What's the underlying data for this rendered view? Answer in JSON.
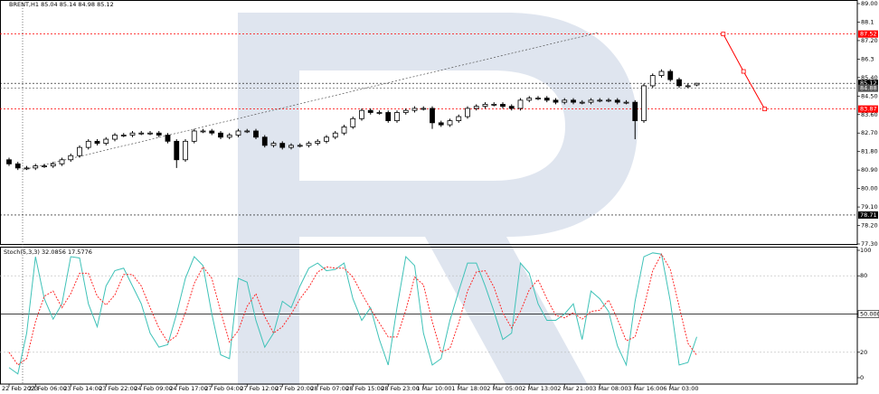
{
  "chart_data": [
    {
      "type": "candlestick",
      "title": "BRENT,H1 85.04 85.14 84.98 85.12",
      "categories": [
        "22 Feb 2023",
        null,
        null,
        "23 Feb 06:00",
        null,
        null,
        null,
        "23 Feb 14:00",
        null,
        null,
        null,
        "23 Feb 22:00",
        null,
        null,
        null,
        "24 Feb 09:00",
        null,
        null,
        null,
        "24 Feb 17:00",
        null,
        null,
        null,
        "27 Feb 04:00",
        null,
        null,
        null,
        "27 Feb 12:00",
        null,
        null,
        null,
        "27 Feb 20:00",
        null,
        null,
        null,
        "28 Feb 07:00",
        null,
        null,
        null,
        "28 Feb 15:00",
        null,
        null,
        null,
        "28 Feb 23:00",
        null,
        null,
        null,
        "1 Mar 10:00",
        null,
        null,
        null,
        "1 Mar 18:00",
        null,
        null,
        null,
        "2 Mar 05:00",
        null,
        null,
        null,
        "2 Mar 13:00",
        null,
        null,
        null,
        "2 Mar 21:00",
        null,
        null,
        null,
        "3 Mar 08:00",
        null,
        null,
        null,
        "3 Mar 16:00",
        null,
        null,
        null,
        "6 Mar 03:00",
        null,
        null,
        null
      ],
      "open": [
        81.4,
        81.2,
        81.0,
        81.0,
        81.1,
        81.1,
        81.2,
        81.4,
        81.6,
        82.0,
        82.3,
        82.2,
        82.4,
        82.6,
        82.6,
        82.7,
        82.7,
        82.7,
        82.6,
        82.3,
        81.4,
        82.3,
        82.8,
        82.8,
        82.7,
        82.5,
        82.6,
        82.8,
        82.8,
        82.5,
        82.1,
        82.2,
        82.0,
        82.1,
        82.1,
        82.2,
        82.3,
        82.5,
        82.7,
        83.0,
        83.4,
        83.8,
        83.7,
        83.7,
        83.3,
        83.7,
        83.8,
        83.9,
        83.9,
        83.2,
        83.1,
        83.3,
        83.5,
        83.9,
        84.0,
        84.1,
        84.1,
        84.0,
        83.9,
        84.3,
        84.4,
        84.4,
        84.3,
        84.2,
        84.3,
        84.2,
        84.2,
        84.3,
        84.3,
        84.3,
        84.2,
        84.2,
        83.3,
        85.0,
        85.5,
        85.7,
        85.3,
        85.0,
        85.04
      ],
      "high": [
        81.5,
        81.3,
        81.1,
        81.2,
        81.2,
        81.3,
        81.5,
        81.7,
        82.1,
        82.4,
        82.4,
        82.5,
        82.7,
        82.7,
        82.8,
        82.8,
        82.8,
        82.8,
        82.7,
        82.4,
        82.4,
        82.9,
        82.9,
        82.9,
        82.8,
        82.7,
        82.9,
        82.9,
        82.9,
        82.6,
        82.3,
        82.3,
        82.2,
        82.2,
        82.3,
        82.4,
        82.6,
        82.8,
        83.1,
        83.5,
        83.9,
        83.9,
        83.8,
        83.8,
        83.8,
        83.9,
        84.0,
        84.0,
        84.0,
        83.3,
        83.4,
        83.6,
        84.0,
        84.1,
        84.2,
        84.2,
        84.2,
        84.1,
        84.4,
        84.5,
        84.5,
        84.5,
        84.4,
        84.4,
        84.4,
        84.3,
        84.4,
        84.4,
        84.4,
        84.4,
        84.3,
        84.3,
        85.1,
        85.6,
        85.8,
        85.8,
        85.4,
        85.1,
        85.14
      ],
      "low": [
        81.1,
        80.9,
        80.9,
        80.9,
        81.0,
        81.0,
        81.1,
        81.3,
        81.5,
        81.9,
        82.1,
        82.1,
        82.3,
        82.5,
        82.5,
        82.6,
        82.6,
        82.5,
        82.2,
        81.0,
        81.3,
        82.2,
        82.7,
        82.6,
        82.4,
        82.4,
        82.5,
        82.7,
        82.4,
        82.0,
        82.0,
        81.9,
        81.9,
        82.0,
        82.0,
        82.1,
        82.2,
        82.4,
        82.6,
        82.9,
        83.3,
        83.6,
        83.6,
        83.2,
        83.2,
        83.6,
        83.7,
        83.8,
        82.9,
        83.0,
        83.0,
        83.2,
        83.4,
        83.8,
        83.9,
        84.0,
        83.9,
        83.8,
        83.8,
        84.2,
        84.3,
        84.2,
        84.1,
        84.1,
        84.1,
        84.1,
        84.1,
        84.2,
        84.2,
        84.1,
        84.1,
        82.4,
        83.2,
        84.9,
        85.4,
        85.2,
        84.9,
        84.9,
        84.98
      ],
      "close": [
        81.2,
        81.0,
        81.0,
        81.1,
        81.1,
        81.2,
        81.4,
        81.6,
        82.0,
        82.3,
        82.2,
        82.4,
        82.6,
        82.6,
        82.7,
        82.7,
        82.7,
        82.6,
        82.3,
        81.4,
        82.3,
        82.8,
        82.8,
        82.7,
        82.5,
        82.6,
        82.8,
        82.8,
        82.5,
        82.1,
        82.2,
        82.0,
        82.1,
        82.1,
        82.2,
        82.3,
        82.5,
        82.7,
        83.0,
        83.4,
        83.8,
        83.7,
        83.7,
        83.3,
        83.7,
        83.8,
        83.9,
        83.9,
        83.2,
        83.1,
        83.3,
        83.5,
        83.9,
        84.0,
        84.1,
        84.1,
        84.0,
        83.9,
        84.3,
        84.4,
        84.4,
        84.3,
        84.2,
        84.3,
        84.2,
        84.2,
        84.3,
        84.3,
        84.3,
        84.2,
        84.2,
        83.3,
        85.0,
        85.5,
        85.7,
        85.3,
        85.0,
        85.0,
        85.12
      ],
      "up_color": "#ffffff",
      "down_color": "#000000",
      "ylim": [
        77.3,
        89.0
      ],
      "yticks": [
        {
          "value": 89.0,
          "label": "89.00"
        },
        88.1,
        {
          "value": 87.2,
          "label": "87.20"
        },
        86.3,
        {
          "value": 85.4,
          "label": "85.40"
        },
        {
          "value": 84.5,
          "label": "84.50"
        },
        {
          "value": 83.6,
          "label": "83.60"
        },
        {
          "value": 82.7,
          "label": "82.70"
        },
        {
          "value": 81.8,
          "label": "81.80"
        },
        {
          "value": 80.9,
          "label": "80.90"
        },
        {
          "value": 80.0,
          "label": "80.00"
        },
        {
          "value": 79.1,
          "label": "79.10"
        },
        {
          "value": 78.2,
          "label": "78.20"
        },
        {
          "value": 77.3,
          "label": "77.30"
        }
      ],
      "levels": [
        {
          "value": 87.52,
          "color": "#ff0000"
        },
        {
          "value": 85.12,
          "color": "#000000"
        },
        {
          "value": 84.88,
          "color": "#555555"
        },
        {
          "value": 83.87,
          "color": "#ff0000"
        },
        {
          "value": 78.71,
          "color": "#000000"
        }
      ],
      "trendline": {
        "x": [
          1.5,
          66.95
        ],
        "values": [
          80.9,
          87.6
        ],
        "color": "#555555"
      },
      "forecast": {
        "x": [
          81,
          83.3,
          85.7
        ],
        "values": [
          87.52,
          85.7,
          83.87
        ],
        "color": "#ff0000"
      }
    },
    {
      "type": "line",
      "title": "Stoch(5,3,3) 32.0856 17.5776",
      "series": [
        {
          "color": "#3fc2b8",
          "dashed": false,
          "values": [
            8,
            3,
            35,
            95,
            62,
            46,
            58,
            95,
            94,
            58,
            40,
            72,
            84,
            86,
            72,
            58,
            35,
            24,
            26,
            50,
            78,
            95,
            88,
            50,
            18,
            15,
            78,
            75,
            45,
            24,
            35,
            60,
            55,
            72,
            86,
            90,
            84,
            85,
            90,
            62,
            45,
            55,
            30,
            10,
            55,
            95,
            88,
            35,
            10,
            15,
            45,
            68,
            90,
            90,
            72,
            52,
            30,
            35,
            90,
            82,
            58,
            45,
            45,
            50,
            58,
            30,
            68,
            62,
            52,
            25,
            10,
            60,
            95,
            98,
            97,
            60,
            10,
            12,
            32.0856
          ]
        },
        {
          "color": "#ff2a2a",
          "dashed": true,
          "values": [
            20,
            10,
            15,
            44,
            64,
            68,
            55,
            66,
            82,
            82,
            64,
            57,
            65,
            81,
            81,
            72,
            55,
            39,
            28,
            33,
            51,
            74,
            87,
            78,
            52,
            28,
            37,
            56,
            66,
            48,
            35,
            40,
            50,
            62,
            71,
            83,
            87,
            86,
            86,
            79,
            66,
            54,
            43,
            32,
            32,
            53,
            79,
            73,
            44,
            20,
            23,
            43,
            68,
            83,
            84,
            71,
            51,
            39,
            52,
            69,
            77,
            62,
            49,
            47,
            51,
            46,
            52,
            53,
            61,
            46,
            29,
            32,
            55,
            84,
            97,
            85,
            56,
            27,
            17.5776
          ]
        }
      ],
      "ylim": [
        0,
        100
      ],
      "yticks": [
        100,
        80,
        {
          "value": 50,
          "label": "50.0000"
        },
        20,
        0
      ]
    }
  ]
}
